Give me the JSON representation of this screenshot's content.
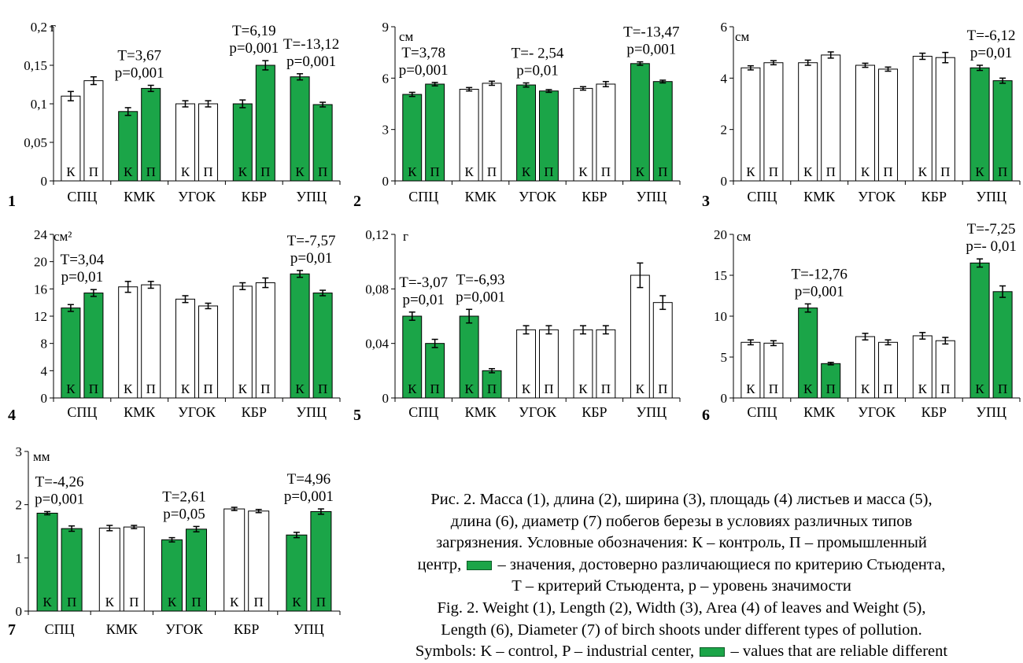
{
  "colors": {
    "significant": "#1ba548",
    "normal": "#ffffff",
    "stroke": "#000000"
  },
  "bar_labels": [
    "К",
    "П"
  ],
  "categories": [
    "СПЦ",
    "КМК",
    "УГОК",
    "КБР",
    "УПЦ"
  ],
  "chart_data": [
    {
      "type": "bar",
      "panel_number": "1",
      "unit": "г",
      "ylim": [
        0,
        0.2
      ],
      "yticks": [
        0,
        0.05,
        0.1,
        0.15,
        0.2
      ],
      "ytick_labels": [
        "0",
        "0,05",
        "0,1",
        "0,15",
        "0,2"
      ],
      "categories": [
        "СПЦ",
        "КМК",
        "УГОК",
        "КБР",
        "УПЦ"
      ],
      "series": [
        {
          "values": [
            0.11,
            0.09,
            0.1,
            0.1,
            0.135
          ],
          "errors": [
            0.006,
            0.005,
            0.004,
            0.005,
            0.004
          ],
          "significant": [
            false,
            true,
            false,
            true,
            true
          ]
        },
        {
          "values": [
            0.13,
            0.12,
            0.1,
            0.15,
            0.099
          ],
          "errors": [
            0.005,
            0.004,
            0.004,
            0.006,
            0.003
          ],
          "significant": [
            false,
            true,
            false,
            true,
            true
          ]
        }
      ],
      "annotations": [
        {
          "category": 1,
          "t": "T=3,67",
          "p": "p=0,001"
        },
        {
          "category": 3,
          "t": "T=6,19",
          "p": "p=0,001"
        },
        {
          "category": 4,
          "t": "T=-13,12",
          "p": "p=0,001"
        }
      ]
    },
    {
      "type": "bar",
      "panel_number": "2",
      "unit": "см",
      "ylim": [
        0,
        9
      ],
      "yticks": [
        0,
        3,
        6,
        9
      ],
      "ytick_labels": [
        "0",
        "3",
        "6",
        "9"
      ],
      "categories": [
        "СПЦ",
        "КМК",
        "УГОК",
        "КБР",
        "УПЦ"
      ],
      "series": [
        {
          "values": [
            5.05,
            5.35,
            5.6,
            5.4,
            6.85
          ],
          "errors": [
            0.12,
            0.1,
            0.12,
            0.1,
            0.1
          ],
          "significant": [
            true,
            false,
            true,
            false,
            true
          ]
        },
        {
          "values": [
            5.65,
            5.7,
            5.25,
            5.65,
            5.8
          ],
          "errors": [
            0.1,
            0.12,
            0.08,
            0.15,
            0.08
          ],
          "significant": [
            true,
            false,
            true,
            false,
            true
          ]
        }
      ],
      "annotations": [
        {
          "category": 0,
          "t": "T=3,78",
          "p": "p=0,001"
        },
        {
          "category": 2,
          "t": "T=- 2,54",
          "p": "p=0,01"
        },
        {
          "category": 4,
          "t": "T=-13,47",
          "p": "p=0,001"
        }
      ]
    },
    {
      "type": "bar",
      "panel_number": "3",
      "unit": "см",
      "ylim": [
        0,
        6
      ],
      "yticks": [
        0,
        2,
        4,
        6
      ],
      "ytick_labels": [
        "0",
        "2",
        "4",
        "6"
      ],
      "categories": [
        "СПЦ",
        "КМК",
        "УГОК",
        "КБР",
        "УПЦ"
      ],
      "series": [
        {
          "values": [
            4.4,
            4.6,
            4.5,
            4.85,
            4.4
          ],
          "errors": [
            0.08,
            0.1,
            0.08,
            0.12,
            0.1
          ],
          "significant": [
            false,
            false,
            false,
            false,
            true
          ]
        },
        {
          "values": [
            4.6,
            4.9,
            4.35,
            4.8,
            3.9
          ],
          "errors": [
            0.08,
            0.12,
            0.08,
            0.2,
            0.1
          ],
          "significant": [
            false,
            false,
            false,
            false,
            true
          ]
        }
      ],
      "annotations": [
        {
          "category": 4,
          "t": "T=-6,12",
          "p": "p=0,01"
        }
      ]
    },
    {
      "type": "bar",
      "panel_number": "4",
      "unit": "см²",
      "ylim": [
        0,
        24
      ],
      "yticks": [
        0,
        4,
        8,
        12,
        16,
        20,
        24
      ],
      "ytick_labels": [
        "0",
        "4",
        "8",
        "12",
        "16",
        "20",
        "24"
      ],
      "categories": [
        "СПЦ",
        "КМК",
        "УГОК",
        "КБР",
        "УПЦ"
      ],
      "series": [
        {
          "values": [
            13.2,
            16.3,
            14.5,
            16.4,
            18.2
          ],
          "errors": [
            0.5,
            0.8,
            0.5,
            0.5,
            0.5
          ],
          "significant": [
            true,
            false,
            false,
            false,
            true
          ]
        },
        {
          "values": [
            15.4,
            16.6,
            13.5,
            16.9,
            15.4
          ],
          "errors": [
            0.5,
            0.5,
            0.4,
            0.7,
            0.4
          ],
          "significant": [
            true,
            false,
            false,
            false,
            true
          ]
        }
      ],
      "annotations": [
        {
          "category": 0,
          "t": "T=3,04",
          "p": "p=0,01"
        },
        {
          "category": 4,
          "t": "T=-7,57",
          "p": "p=0,01"
        }
      ]
    },
    {
      "type": "bar",
      "panel_number": "5",
      "unit": "г",
      "ylim": [
        0,
        0.12
      ],
      "yticks": [
        0,
        0.04,
        0.08,
        0.12
      ],
      "ytick_labels": [
        "0",
        "0,04",
        "0,08",
        "0,12"
      ],
      "categories": [
        "СПЦ",
        "КМК",
        "УГОК",
        "КБР",
        "УПЦ"
      ],
      "series": [
        {
          "values": [
            0.06,
            0.06,
            0.05,
            0.05,
            0.09
          ],
          "errors": [
            0.003,
            0.005,
            0.003,
            0.003,
            0.009
          ],
          "significant": [
            true,
            true,
            false,
            false,
            false
          ]
        },
        {
          "values": [
            0.04,
            0.02,
            0.05,
            0.05,
            0.07
          ],
          "errors": [
            0.003,
            0.0015,
            0.003,
            0.003,
            0.005
          ],
          "significant": [
            true,
            true,
            false,
            false,
            false
          ]
        }
      ],
      "annotations": [
        {
          "category": 0,
          "t": "T=-3,07",
          "p": "p=0,01"
        },
        {
          "category": 1,
          "t": "T=-6,93",
          "p": "p=0,001"
        }
      ]
    },
    {
      "type": "bar",
      "panel_number": "6",
      "unit": "см",
      "ylim": [
        0,
        20
      ],
      "yticks": [
        0,
        5,
        10,
        15,
        20
      ],
      "ytick_labels": [
        "0",
        "5",
        "10",
        "15",
        "20"
      ],
      "categories": [
        "СПЦ",
        "КМК",
        "УГОК",
        "КБР",
        "УПЦ"
      ],
      "series": [
        {
          "values": [
            6.8,
            11.0,
            7.5,
            7.6,
            16.5
          ],
          "errors": [
            0.3,
            0.5,
            0.4,
            0.4,
            0.5
          ],
          "significant": [
            false,
            true,
            false,
            false,
            true
          ]
        },
        {
          "values": [
            6.7,
            4.2,
            6.8,
            7.0,
            13.0
          ],
          "errors": [
            0.3,
            0.15,
            0.3,
            0.4,
            0.7
          ],
          "significant": [
            false,
            true,
            false,
            false,
            true
          ]
        }
      ],
      "annotations": [
        {
          "category": 1,
          "t": "T=-12,76",
          "p": "p=0,001"
        },
        {
          "category": 4,
          "t": "T=-7,25",
          "p": "p=- 0,01"
        }
      ]
    },
    {
      "type": "bar",
      "panel_number": "7",
      "unit": "мм",
      "ylim": [
        0,
        3
      ],
      "yticks": [
        0,
        1,
        2,
        3
      ],
      "ytick_labels": [
        "0",
        "1",
        "2",
        "3"
      ],
      "categories": [
        "СПЦ",
        "КМК",
        "УГОК",
        "КБР",
        "УПЦ"
      ],
      "series": [
        {
          "values": [
            1.84,
            1.56,
            1.34,
            1.92,
            1.43
          ],
          "errors": [
            0.03,
            0.05,
            0.04,
            0.03,
            0.05
          ],
          "significant": [
            true,
            false,
            true,
            false,
            true
          ]
        },
        {
          "values": [
            1.55,
            1.58,
            1.54,
            1.88,
            1.87
          ],
          "errors": [
            0.05,
            0.03,
            0.05,
            0.03,
            0.05
          ],
          "significant": [
            true,
            false,
            true,
            false,
            true
          ]
        }
      ],
      "annotations": [
        {
          "category": 0,
          "t": "T=-4,26",
          "p": "p=0,001"
        },
        {
          "category": 2,
          "t": "T=2,61",
          "p": "p=0,05"
        },
        {
          "category": 4,
          "t": "T=4,96",
          "p": "p=0,001"
        }
      ]
    }
  ],
  "caption": {
    "ru_1": "Рис. 2. Масса (1), длина (2), ширина (3), площадь (4) листьев и масса (5),",
    "ru_2": "длина (6), диаметр (7) побегов березы в условиях различных типов",
    "ru_3": "загрязнения. Условные обозначения: К – контроль, П – промышленный",
    "ru_4a": "центр,",
    "ru_4b": "– значения, достоверно различающиеся по критерию Стьюдента,",
    "ru_5": "Т – критерий Стьюдента, р – уровень значимости",
    "en_1": "Fig. 2. Weight (1), Length (2), Width (3), Area (4) of leaves and Weight (5),",
    "en_2": "Length (6), Diameter (7) of birch shoots under different types of pollution.",
    "en_3a": "Symbols: K – control, P – industrial center,",
    "en_3b": "– values that are reliable different"
  }
}
